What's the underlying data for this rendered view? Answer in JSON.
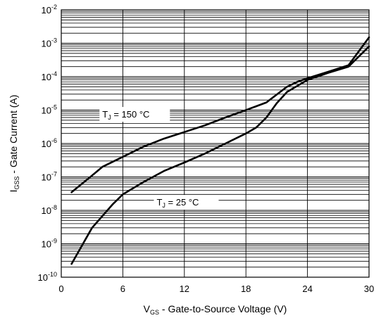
{
  "chart_data": {
    "type": "line",
    "title": "",
    "xlabel": {
      "main": "V",
      "sub": "GS",
      "rest": " - Gate-to-Source Voltage (V)"
    },
    "ylabel": {
      "main": "I",
      "sub": "GSS",
      "rest": " - Gate Current (A)"
    },
    "xlim": [
      0,
      30
    ],
    "ylim": [
      1e-10,
      0.01
    ],
    "yscale": "log",
    "grid": true,
    "x_ticks": [
      "0",
      "6",
      "12",
      "18",
      "24",
      "30"
    ],
    "y_ticks": [
      {
        "base": "10",
        "exp": "-2"
      },
      {
        "base": "10",
        "exp": "-3"
      },
      {
        "base": "10",
        "exp": "-4"
      },
      {
        "base": "10",
        "exp": "-5"
      },
      {
        "base": "10",
        "exp": "-6"
      },
      {
        "base": "10",
        "exp": "-7"
      },
      {
        "base": "10",
        "exp": "-8"
      },
      {
        "base": "10",
        "exp": "-9"
      },
      {
        "base": "10",
        "exp": "-10"
      }
    ],
    "series": [
      {
        "label": {
          "main": "T",
          "sub": "J",
          "rest": " = 150 °C"
        },
        "x": [
          1,
          3,
          4,
          6,
          8,
          10,
          12,
          14,
          16,
          18,
          20,
          22,
          23,
          24,
          26,
          28,
          30
        ],
        "y": [
          3.5e-08,
          1.1e-07,
          2e-07,
          4e-07,
          8e-07,
          1.4e-06,
          2.2e-06,
          3.5e-06,
          6e-06,
          1e-05,
          1.7e-05,
          5e-05,
          7e-05,
          9e-05,
          0.00014,
          0.00022,
          0.0015
        ]
      },
      {
        "label": {
          "main": "T",
          "sub": "J",
          "rest": " = 25 °C"
        },
        "x": [
          1,
          3,
          5,
          6,
          8,
          10,
          12,
          14,
          16,
          18,
          19,
          20,
          21,
          22,
          24,
          26,
          28,
          30
        ],
        "y": [
          2.5e-10,
          3e-09,
          1.5e-08,
          3e-08,
          7e-08,
          1.5e-07,
          2.7e-07,
          5e-07,
          1e-06,
          2e-06,
          3e-06,
          6e-06,
          1.6e-05,
          3.5e-05,
          8e-05,
          0.00013,
          0.0002,
          0.0008
        ]
      }
    ]
  }
}
